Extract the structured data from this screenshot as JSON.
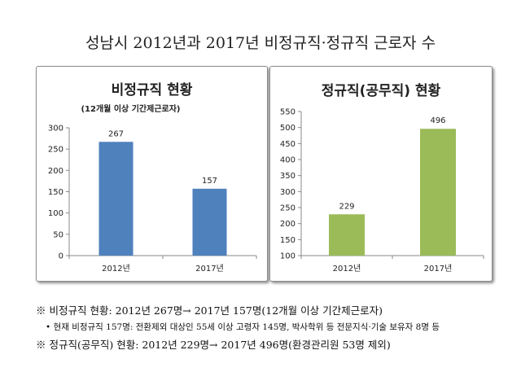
{
  "title": "성남시 2012년과 2017년 비정규직·정규직 근로자 수",
  "chart_data": [
    {
      "type": "bar",
      "title": "비정규직 현황",
      "subtitle": "(12개월 이상 기간제근로자)",
      "categories": [
        "2012년",
        "2017년"
      ],
      "values": [
        267,
        157
      ],
      "ylim": [
        0,
        300
      ],
      "yticks": [
        0,
        50,
        100,
        150,
        200,
        250,
        300
      ],
      "grid": false,
      "bar_color": "#4f81bd"
    },
    {
      "type": "bar",
      "title": "정규직(공무직) 현황",
      "categories": [
        "2012년",
        "2017년"
      ],
      "values": [
        229,
        496
      ],
      "ylim": [
        100,
        550
      ],
      "yticks": [
        100,
        150,
        200,
        250,
        300,
        350,
        400,
        450,
        500,
        550
      ],
      "grid": false,
      "bar_color": "#9bbb59"
    }
  ],
  "notes": [
    "※ 비정규직 현황: 2012년 267명→ 2017년 157명(12개월 이상 기간제근로자)",
    "• 현재 비정규직 157명: 전환제외 대상인 55세 이상 고령자 145명, 박사학위 등 전문지식·기술 보유자 8명 등",
    "※ 정규직(공무직) 현황: 2012년 229명→ 2017년 496명(환경관리원 53명 제외)"
  ]
}
